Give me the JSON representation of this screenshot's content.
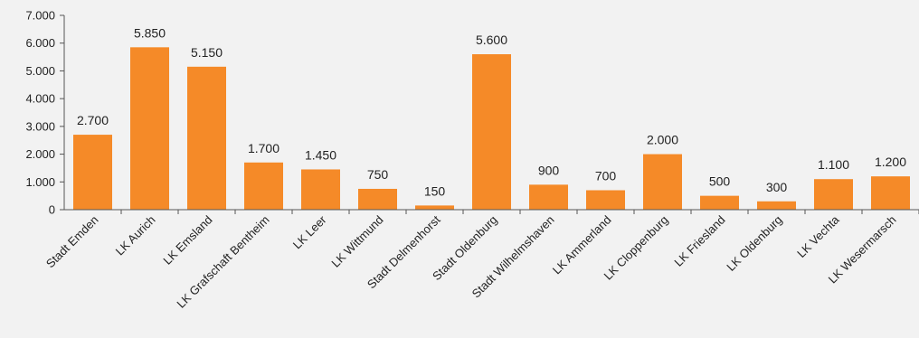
{
  "chart_data": {
    "type": "bar",
    "categories": [
      "Stadt Emden",
      "LK Aurich",
      "LK Emsland",
      "LK Grafschaft Bentheim",
      "LK Leer",
      "LK Wittmund",
      "Stadt Delmenhorst",
      "Stadt Oldenburg",
      "Stadt Wilhelmshaven",
      "LK Ammerland",
      "LK Cloppenburg",
      "LK Friesland",
      "LK Oldenburg",
      "LK Vechta",
      "LK Wesermarsch"
    ],
    "values": [
      2700,
      5850,
      5150,
      1700,
      1450,
      750,
      150,
      5600,
      900,
      700,
      2000,
      500,
      300,
      1100,
      1200
    ],
    "data_labels": [
      "2.700",
      "5.850",
      "5.150",
      "1.700",
      "1.450",
      "750",
      "150",
      "5.600",
      "900",
      "700",
      "2.000",
      "500",
      "300",
      "1.100",
      "1.200"
    ],
    "y_ticks": [
      0,
      1000,
      2000,
      3000,
      4000,
      5000,
      6000,
      7000
    ],
    "y_tick_labels": [
      "0",
      "1.000",
      "2.000",
      "3.000",
      "4.000",
      "5.000",
      "6.000",
      "7.000"
    ],
    "ylim": [
      0,
      7000
    ],
    "grid": false,
    "legend": "none",
    "bar_color": "#f58a28",
    "axis_color": "#555555",
    "background": "#f2f2f2"
  }
}
